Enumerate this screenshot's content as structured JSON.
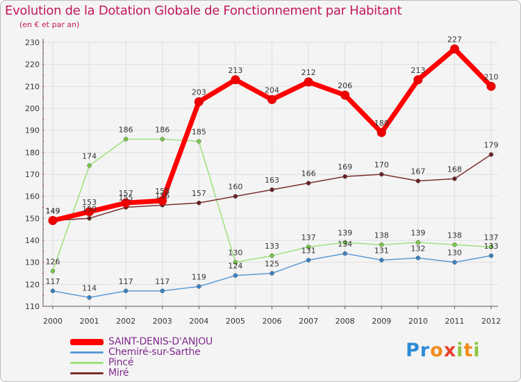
{
  "chart_data": {
    "type": "line",
    "title": "Evolution de la Dotation Globale de Fonctionnement par Habitant",
    "subtitle": "(en € et par an)",
    "xlabel": "",
    "ylabel": "",
    "x": [
      "2000",
      "2001",
      "2002",
      "2003",
      "2004",
      "2005",
      "2006",
      "2007",
      "2008",
      "2009",
      "2010",
      "2011",
      "2012"
    ],
    "ylim": [
      110,
      230
    ],
    "yticks": [
      110,
      120,
      130,
      140,
      150,
      160,
      170,
      180,
      190,
      200,
      210,
      220,
      230
    ],
    "grid": true,
    "legend_position": "bottom-left",
    "series": [
      {
        "name": "Chemiré-sur-Sarthe",
        "color": "#5b9bd5",
        "marker": "#3a82c4",
        "values": [
          117,
          114,
          117,
          117,
          119,
          124,
          125,
          131,
          134,
          131,
          132,
          130,
          133
        ]
      },
      {
        "name": "Pincé",
        "color": "#9ee07a",
        "marker": "#78c848",
        "values": [
          126,
          174,
          186,
          186,
          185,
          130,
          133,
          137,
          139,
          138,
          139,
          138,
          137
        ]
      },
      {
        "name": "Miré",
        "color": "#7a2e2e",
        "marker": "#6a1f1f",
        "values": [
          149,
          150,
          155,
          156,
          157,
          160,
          163,
          166,
          169,
          170,
          167,
          168,
          179
        ]
      },
      {
        "name": "SAINT-DENIS-D'ANJOU",
        "color": "#ff0000",
        "marker": "#ee0000",
        "highlight": true,
        "values": [
          149,
          153,
          157,
          158,
          203,
          213,
          204,
          212,
          206,
          189,
          213,
          227,
          210
        ]
      }
    ]
  },
  "legend": {
    "items": [
      {
        "label": "SAINT-DENIS-D'ANJOU",
        "color": "#ff0000"
      },
      {
        "label": "Chemiré-sur-Sarthe",
        "color": "#5b9bd5"
      },
      {
        "label": "Pincé",
        "color": "#9ee07a"
      },
      {
        "label": "Miré",
        "color": "#7a2e2e"
      }
    ]
  },
  "brand": {
    "letters": [
      "P",
      "r",
      "o",
      "x",
      "i",
      "t",
      "i"
    ],
    "colors": [
      "#2e8bd8",
      "#2e8bd8",
      "#f08c1e",
      "#e8402a",
      "#8cc63f",
      "#f08c1e",
      "#8cc63f"
    ]
  }
}
